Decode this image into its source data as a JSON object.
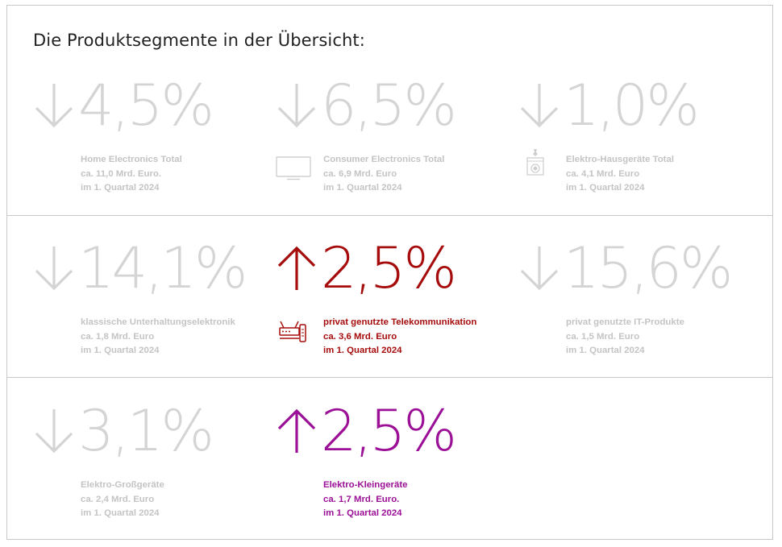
{
  "title": "Die Produktsegmente in der Übersicht:",
  "segments": [
    {
      "arrow": "down-arrow-icon",
      "value": "4,5%",
      "name": "Home Electronics Total",
      "amount": "ca. 11,0 Mrd. Euro.",
      "period": "im 1. Quartal 2024",
      "icon": ""
    },
    {
      "arrow": "down-arrow-icon",
      "value": "6,5%",
      "name": "Consumer Electronics Total",
      "amount": "ca. 6,9 Mrd. Euro",
      "period": "im 1. Quartal 2024",
      "icon": "tv-icon"
    },
    {
      "arrow": "down-arrow-icon",
      "value": "1,0%",
      "name": "Elektro-Hausgeräte Total",
      "amount": "ca. 4,1 Mrd. Euro",
      "period": "im 1. Quartal 2024",
      "icon": "washing-machine-icon"
    },
    {
      "arrow": "down-arrow-icon",
      "value": "14,1%",
      "name": "klassische Unterhaltungselektronik",
      "amount": "ca. 1,8 Mrd. Euro",
      "period": "im 1. Quartal 2024",
      "icon": ""
    },
    {
      "arrow": "up-arrow-icon",
      "value": "2,5%",
      "name": "privat genutzte Telekommunikation",
      "amount": "ca. 3,6 Mrd. Euro",
      "period": "im 1. Quartal 2024",
      "icon": "router-phone-icon",
      "color": "#a60c0c"
    },
    {
      "arrow": "down-arrow-icon",
      "value": "15,6%",
      "name": "privat genutzte IT-Produkte",
      "amount": "ca. 1,5 Mrd. Euro",
      "period": "im 1. Quartal 2024",
      "icon": ""
    },
    {
      "arrow": "down-arrow-icon",
      "value": "3,1%",
      "name": "Elektro-Großgeräte",
      "amount": "ca. 2,4 Mrd. Euro",
      "period": "im 1. Quartal 2024",
      "icon": ""
    },
    {
      "arrow": "up-arrow-icon",
      "value": "2,5%",
      "name": "Elektro-Kleingeräte",
      "amount": "ca. 1,7 Mrd. Euro.",
      "period": "im 1. Quartal 2024",
      "icon": "",
      "color": "#9b1096"
    }
  ],
  "colors": {
    "neutral": "#d4d4d4",
    "telecom": "#a60c0c",
    "small_appliances": "#9b1096"
  }
}
